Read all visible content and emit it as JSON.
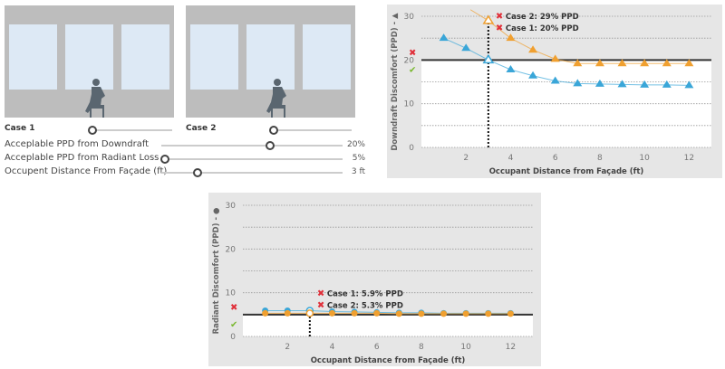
{
  "cases": [
    {
      "label": "Case 1",
      "slider": 0.05
    },
    {
      "label": "Case 2",
      "slider": 0.05
    }
  ],
  "settings": [
    {
      "label": "Acceplable PPD from Downdraft",
      "value": "20%",
      "fraction": 0.6
    },
    {
      "label": "Acceplable PPD from Radiant Loss",
      "value": "5%",
      "fraction": 0.02
    },
    {
      "label": "Occupent Distance From Façade (ft)",
      "value": "3 ft",
      "fraction": 0.2
    }
  ],
  "colors": {
    "case1": "#3aa6d8",
    "case2": "#f0a030",
    "fail": "#e0303a",
    "pass": "#7ab830",
    "panel": "#e6e6e6"
  },
  "chart_data": [
    {
      "type": "line",
      "ylabel": "Downdraft Discomfort (PPD) - ▲",
      "xlabel": "Occupant Distance from Façade (ft)",
      "marker": "triangle",
      "xlim": [
        0,
        13
      ],
      "ylim": [
        0,
        30
      ],
      "xticks": [
        2,
        4,
        6,
        8,
        10,
        12
      ],
      "yticks": [
        0,
        10,
        20,
        30
      ],
      "threshold": 20,
      "selected_x": 3,
      "x": [
        1,
        2,
        3,
        4,
        5,
        6,
        7,
        8,
        9,
        10,
        11,
        12
      ],
      "series": [
        {
          "key": "case1",
          "values": [
            25,
            22.7,
            20,
            17.8,
            16.4,
            15.2,
            14.6,
            14.5,
            14.4,
            14.3,
            14.3,
            14.2
          ]
        },
        {
          "key": "case2",
          "values": [
            null,
            null,
            29,
            25,
            22.3,
            20.2,
            19.2,
            19.2,
            19.2,
            19.2,
            19.2,
            19.2
          ]
        }
      ],
      "annotations": [
        "Case 2: 29% PPD",
        "Case 1: 20% PPD"
      ]
    },
    {
      "type": "line",
      "ylabel": "Radiant Discomfort (PPD) - ●",
      "xlabel": "Occupant Distance from Façade (ft)",
      "marker": "circle",
      "xlim": [
        0,
        13
      ],
      "ylim": [
        0,
        30
      ],
      "xticks": [
        2,
        4,
        6,
        8,
        10,
        12
      ],
      "yticks": [
        0,
        10,
        20,
        30
      ],
      "threshold": 5,
      "selected_x": 3,
      "x": [
        1,
        2,
        3,
        4,
        5,
        6,
        7,
        8,
        9,
        10,
        11,
        12
      ],
      "series": [
        {
          "key": "case1",
          "values": [
            5.9,
            5.9,
            5.9,
            5.7,
            5.6,
            5.5,
            5.4,
            5.4,
            5.3,
            5.3,
            5.3,
            5.3
          ]
        },
        {
          "key": "case2",
          "values": [
            5.3,
            5.3,
            5.3,
            5.3,
            5.3,
            5.3,
            5.2,
            5.2,
            5.2,
            5.2,
            5.2,
            5.2
          ]
        }
      ],
      "annotations": [
        "Case 1: 5.9% PPD",
        "Case 2: 5.3% PPD"
      ]
    }
  ]
}
